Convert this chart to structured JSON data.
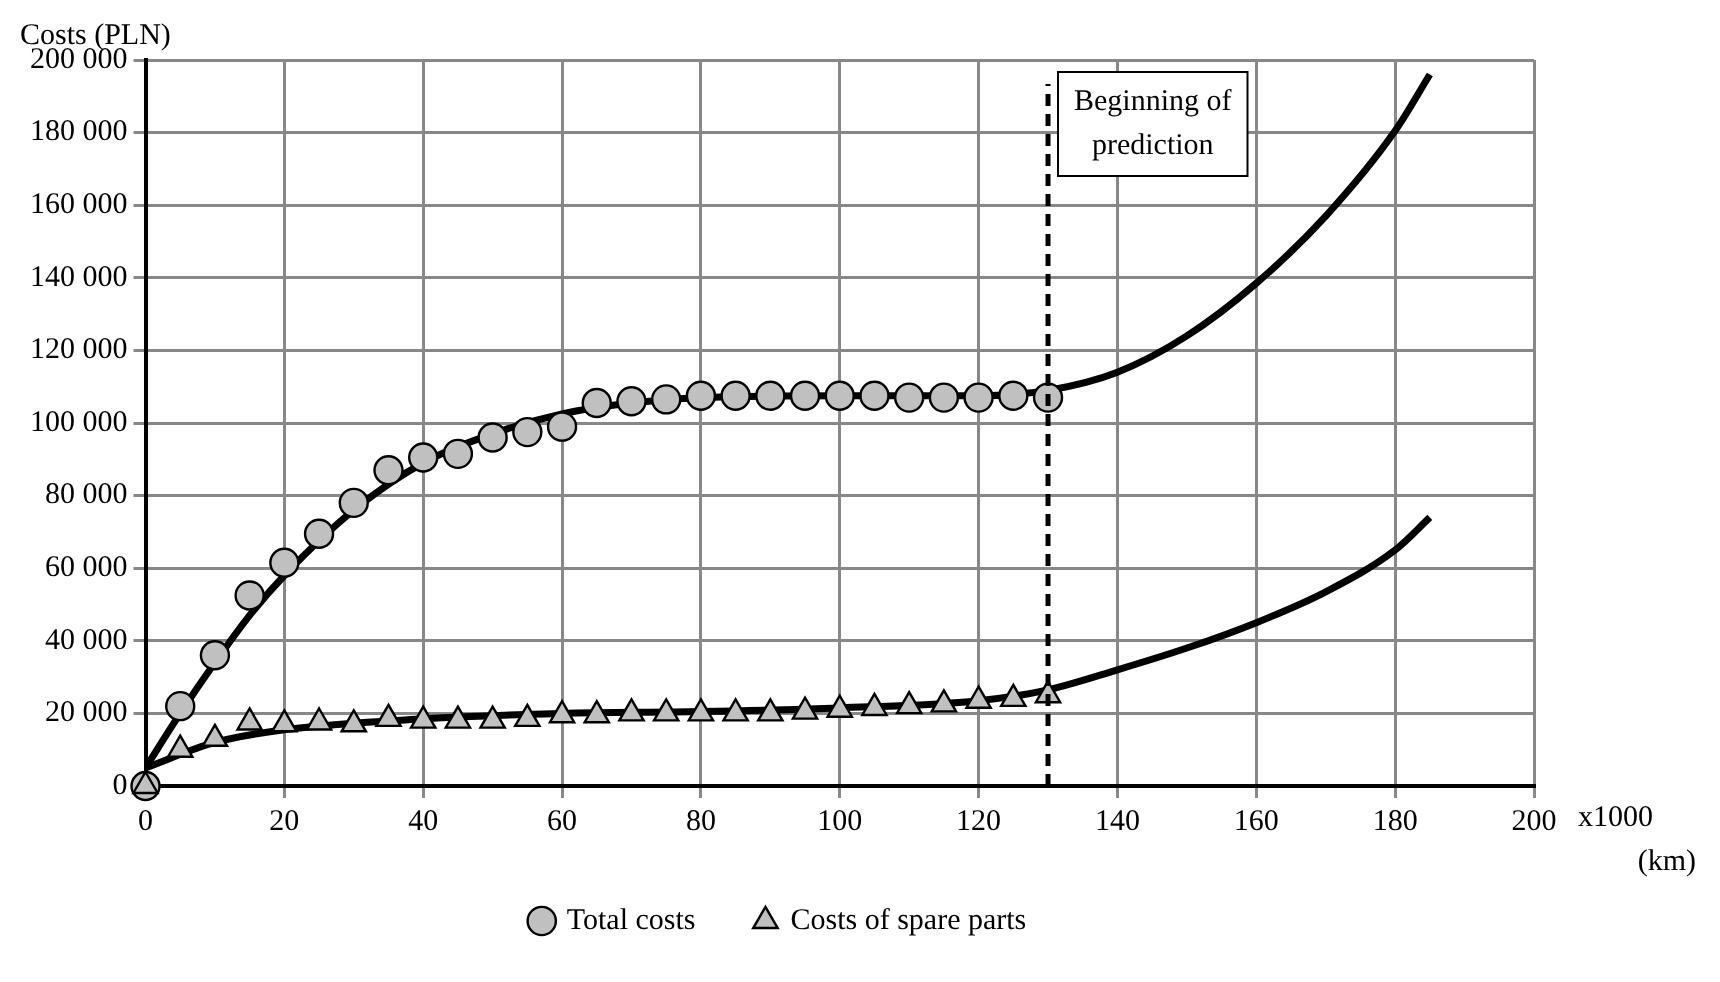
{
  "chart_data": {
    "type": "scatter",
    "ylabel": "Costs (PLN)",
    "xlabel": "x1000 (km)",
    "xlim": [
      0,
      200
    ],
    "xticks": [
      0,
      20,
      40,
      60,
      80,
      100,
      120,
      140,
      160,
      180,
      200
    ],
    "ylim": [
      0,
      200000
    ],
    "yticks": [
      {
        "value": 0,
        "label": "0"
      },
      {
        "value": 20000,
        "label": "20 000"
      },
      {
        "value": 40000,
        "label": "40 000"
      },
      {
        "value": 60000,
        "label": "60 000"
      },
      {
        "value": 80000,
        "label": "80 000"
      },
      {
        "value": 100000,
        "label": "100 000"
      },
      {
        "value": 120000,
        "label": "120 000"
      },
      {
        "value": 140000,
        "label": "140 000"
      },
      {
        "value": 160000,
        "label": "160 000"
      },
      {
        "value": 180000,
        "label": "180 000"
      },
      {
        "value": 200000,
        "label": "200 000"
      }
    ],
    "grid": true,
    "legend": "bottom",
    "ref_lines": [
      {
        "axis": "x",
        "value": 130,
        "label": "Beginning of prediction",
        "line_style": "dashed",
        "color": "#000000"
      }
    ],
    "series": [
      {
        "type": "line",
        "color": "#000000",
        "marker": "none",
        "x": [
          0,
          5,
          10,
          15,
          20,
          30,
          40,
          50,
          60,
          70,
          80,
          100,
          120,
          130,
          140,
          150,
          160,
          170,
          180,
          185
        ],
        "values": [
          5000,
          20000,
          34000,
          47000,
          58000,
          76000,
          89000,
          97000,
          102500,
          105500,
          107000,
          107500,
          107500,
          109000,
          114000,
          124000,
          138500,
          157000,
          180500,
          196000
        ]
      },
      {
        "type": "line",
        "color": "#000000",
        "marker": "none",
        "x": [
          0,
          10,
          20,
          40,
          60,
          80,
          100,
          120,
          130,
          140,
          150,
          160,
          170,
          180,
          185
        ],
        "values": [
          5000,
          12000,
          15500,
          18500,
          20000,
          20500,
          21500,
          23500,
          26500,
          32000,
          38000,
          45000,
          53500,
          65000,
          74000
        ]
      },
      {
        "type": "scatter",
        "name": "Costs of spare parts",
        "color": "#c0c0c0",
        "marker": "triangle",
        "x": [
          0,
          5,
          10,
          15,
          20,
          25,
          30,
          35,
          40,
          45,
          50,
          55,
          60,
          65,
          70,
          75,
          80,
          85,
          90,
          95,
          100,
          105,
          110,
          115,
          120,
          125,
          130
        ],
        "values": [
          0,
          10000,
          13000,
          17500,
          17000,
          17500,
          17000,
          18500,
          18000,
          18000,
          18000,
          18500,
          19500,
          19500,
          20000,
          20000,
          20000,
          20000,
          20000,
          20500,
          21000,
          21500,
          22000,
          22500,
          23500,
          24000,
          25000
        ]
      },
      {
        "type": "scatter",
        "name": "Total costs",
        "color": "#c0c0c0",
        "marker": "circle",
        "x": [
          0,
          5,
          10,
          15,
          20,
          25,
          30,
          35,
          40,
          45,
          50,
          55,
          60,
          65,
          70,
          75,
          80,
          85,
          90,
          95,
          100,
          105,
          110,
          115,
          120,
          125,
          130
        ],
        "values": [
          0,
          22000,
          36000,
          52500,
          61500,
          69500,
          78000,
          87000,
          90500,
          91500,
          96000,
          97500,
          99000,
          105500,
          106000,
          106500,
          107500,
          107500,
          107500,
          107500,
          107500,
          107500,
          107000,
          107000,
          107000,
          107500,
          107000
        ]
      }
    ]
  }
}
